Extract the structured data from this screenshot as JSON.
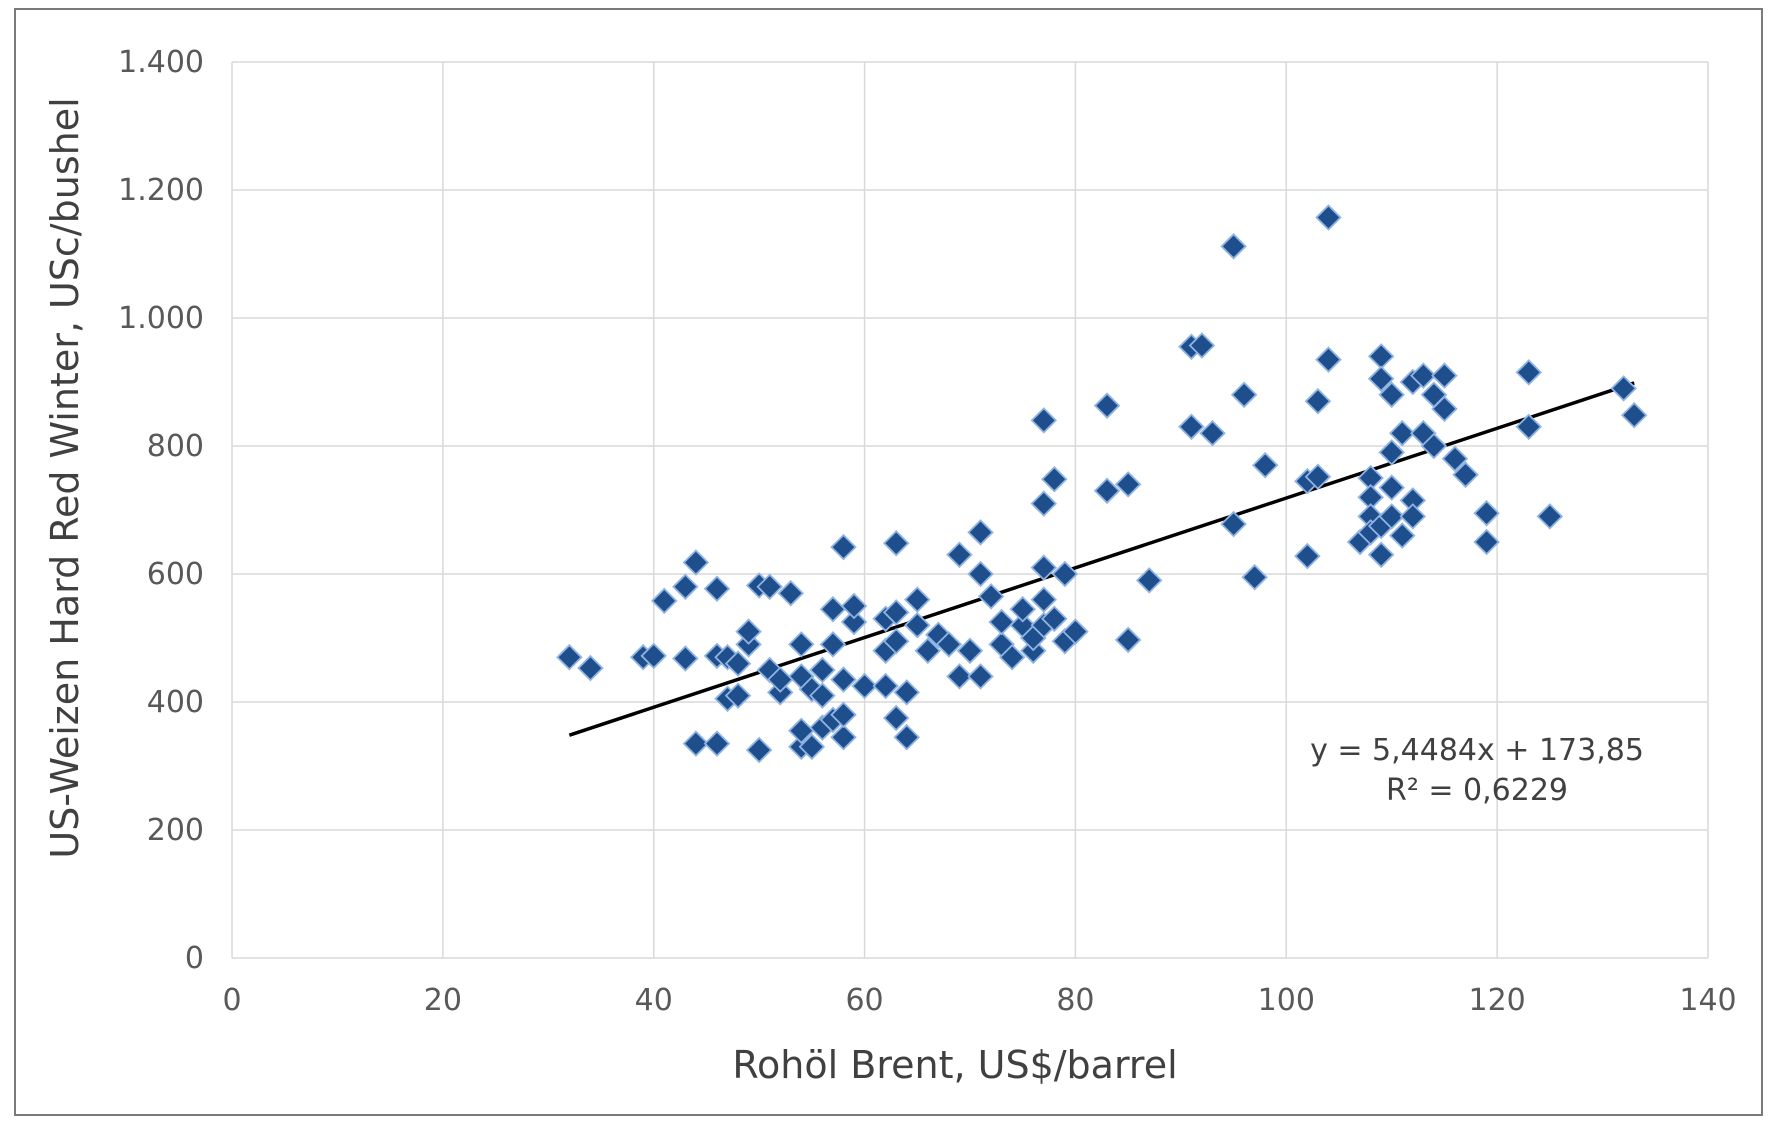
{
  "chart_data": {
    "type": "scatter",
    "title": "",
    "xlabel": "Rohöl Brent, US$/barrel",
    "ylabel": "US-Weizen Hard Red Winter, USc/bushel",
    "xlim": [
      0,
      140
    ],
    "ylim": [
      0,
      1400
    ],
    "xticks": [
      0,
      20,
      40,
      60,
      80,
      100,
      120,
      140
    ],
    "xtick_labels": [
      "0",
      "20",
      "40",
      "60",
      "80",
      "100",
      "120",
      "140"
    ],
    "yticks": [
      0,
      200,
      400,
      600,
      800,
      1000,
      1200,
      1400
    ],
    "ytick_labels": [
      "0",
      "200",
      "400",
      "600",
      "800",
      "1.000",
      "1.200",
      "1.400"
    ],
    "grid": true,
    "marker": "diamond",
    "colors": {
      "marker_fill": "#1f4e8c",
      "marker_edge": "#8fb4e3",
      "trendline": "#000000",
      "grid": "#d9d9d9"
    },
    "trendline": {
      "slope": 5.4484,
      "intercept": 173.85,
      "x_range": [
        32,
        133
      ]
    },
    "annotations": {
      "equation": "y = 5,4484x + 173,85",
      "r_squared": "R² = 0,6229"
    },
    "points": [
      [
        32,
        470
      ],
      [
        34,
        453
      ],
      [
        39,
        470
      ],
      [
        40,
        472
      ],
      [
        41,
        558
      ],
      [
        43,
        468
      ],
      [
        43,
        580
      ],
      [
        44,
        618
      ],
      [
        44,
        335
      ],
      [
        46,
        335
      ],
      [
        46,
        472
      ],
      [
        46,
        577
      ],
      [
        47,
        405
      ],
      [
        47,
        470
      ],
      [
        48,
        410
      ],
      [
        48,
        460
      ],
      [
        49,
        490
      ],
      [
        49,
        510
      ],
      [
        50,
        582
      ],
      [
        50,
        325
      ],
      [
        51,
        580
      ],
      [
        51,
        450
      ],
      [
        52,
        415
      ],
      [
        52,
        435
      ],
      [
        53,
        570
      ],
      [
        54,
        490
      ],
      [
        54,
        440
      ],
      [
        54,
        330
      ],
      [
        54,
        355
      ],
      [
        55,
        420
      ],
      [
        55,
        330
      ],
      [
        56,
        360
      ],
      [
        56,
        450
      ],
      [
        56,
        410
      ],
      [
        57,
        372
      ],
      [
        57,
        545
      ],
      [
        57,
        490
      ],
      [
        58,
        435
      ],
      [
        58,
        642
      ],
      [
        58,
        345
      ],
      [
        58,
        380
      ],
      [
        59,
        525
      ],
      [
        59,
        550
      ],
      [
        60,
        425
      ],
      [
        62,
        530
      ],
      [
        62,
        480
      ],
      [
        62,
        425
      ],
      [
        63,
        648
      ],
      [
        63,
        540
      ],
      [
        63,
        495
      ],
      [
        63,
        375
      ],
      [
        64,
        415
      ],
      [
        64,
        345
      ],
      [
        65,
        560
      ],
      [
        65,
        520
      ],
      [
        66,
        480
      ],
      [
        67,
        505
      ],
      [
        68,
        490
      ],
      [
        69,
        630
      ],
      [
        69,
        440
      ],
      [
        70,
        480
      ],
      [
        71,
        665
      ],
      [
        71,
        600
      ],
      [
        71,
        440
      ],
      [
        72,
        565
      ],
      [
        73,
        490
      ],
      [
        73,
        525
      ],
      [
        74,
        470
      ],
      [
        75,
        520
      ],
      [
        75,
        545
      ],
      [
        76,
        480
      ],
      [
        76,
        500
      ],
      [
        77,
        840
      ],
      [
        77,
        710
      ],
      [
        77,
        610
      ],
      [
        77,
        520
      ],
      [
        77,
        560
      ],
      [
        78,
        748
      ],
      [
        78,
        530
      ],
      [
        79,
        600
      ],
      [
        79,
        495
      ],
      [
        80,
        510
      ],
      [
        83,
        863
      ],
      [
        83,
        730
      ],
      [
        85,
        740
      ],
      [
        85,
        497
      ],
      [
        87,
        590
      ],
      [
        91,
        955
      ],
      [
        91,
        830
      ],
      [
        92,
        957
      ],
      [
        93,
        820
      ],
      [
        95,
        1112
      ],
      [
        95,
        678
      ],
      [
        96,
        880
      ],
      [
        97,
        595
      ],
      [
        98,
        770
      ],
      [
        102,
        628
      ],
      [
        102,
        745
      ],
      [
        103,
        870
      ],
      [
        103,
        752
      ],
      [
        104,
        1157
      ],
      [
        104,
        935
      ],
      [
        107,
        650
      ],
      [
        108,
        750
      ],
      [
        108,
        720
      ],
      [
        108,
        690
      ],
      [
        108,
        665
      ],
      [
        109,
        940
      ],
      [
        109,
        905
      ],
      [
        109,
        630
      ],
      [
        109,
        675
      ],
      [
        110,
        880
      ],
      [
        110,
        790
      ],
      [
        110,
        735
      ],
      [
        110,
        690
      ],
      [
        111,
        820
      ],
      [
        111,
        660
      ],
      [
        112,
        900
      ],
      [
        112,
        715
      ],
      [
        112,
        690
      ],
      [
        113,
        910
      ],
      [
        113,
        820
      ],
      [
        114,
        880
      ],
      [
        114,
        800
      ],
      [
        115,
        858
      ],
      [
        115,
        910
      ],
      [
        116,
        780
      ],
      [
        117,
        755
      ],
      [
        119,
        695
      ],
      [
        119,
        650
      ],
      [
        123,
        915
      ],
      [
        123,
        830
      ],
      [
        125,
        690
      ],
      [
        132,
        890
      ],
      [
        133,
        848
      ]
    ]
  }
}
